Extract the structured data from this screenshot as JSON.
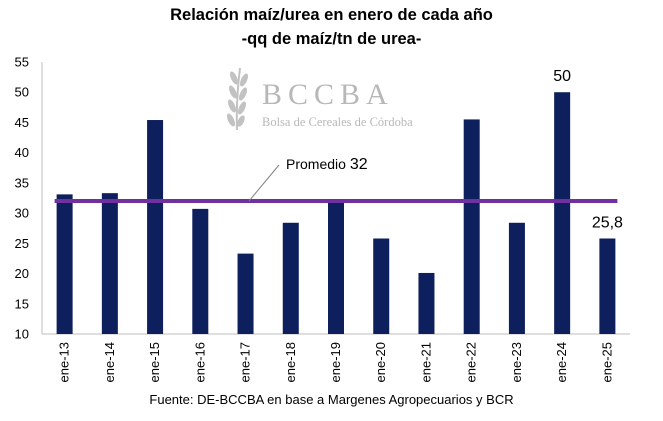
{
  "chart_data": {
    "type": "bar",
    "title": "Relación maíz/urea en enero de cada año",
    "subtitle": "-qq de maíz/tn de urea-",
    "categories": [
      "ene-13",
      "ene-14",
      "ene-15",
      "ene-16",
      "ene-17",
      "ene-18",
      "ene-19",
      "ene-20",
      "ene-21",
      "ene-22",
      "ene-23",
      "ene-24",
      "ene-25"
    ],
    "values": [
      33.1,
      33.3,
      45.4,
      30.7,
      23.3,
      28.4,
      31.9,
      25.8,
      20.1,
      45.5,
      28.4,
      50,
      25.8
    ],
    "ylim": [
      10,
      55
    ],
    "yticks": [
      10,
      15,
      20,
      25,
      30,
      35,
      40,
      45,
      50,
      55
    ],
    "reference_line": {
      "value": 32,
      "label": "Promedio",
      "value_label": "32"
    },
    "data_labels": [
      {
        "index": 11,
        "text": "50"
      },
      {
        "index": 12,
        "text": "25,8"
      }
    ],
    "bar_color": "#0d1f5c",
    "reference_color": "#7030a0",
    "grid": false,
    "legend": "none"
  },
  "logo": {
    "name": "BCCBA",
    "subtitle": "Bolsa de Cereales de Córdoba",
    "icon": "wheat-icon"
  },
  "source": "Fuente: DE-BCCBA en base a Margenes Agropecuarios y BCR"
}
